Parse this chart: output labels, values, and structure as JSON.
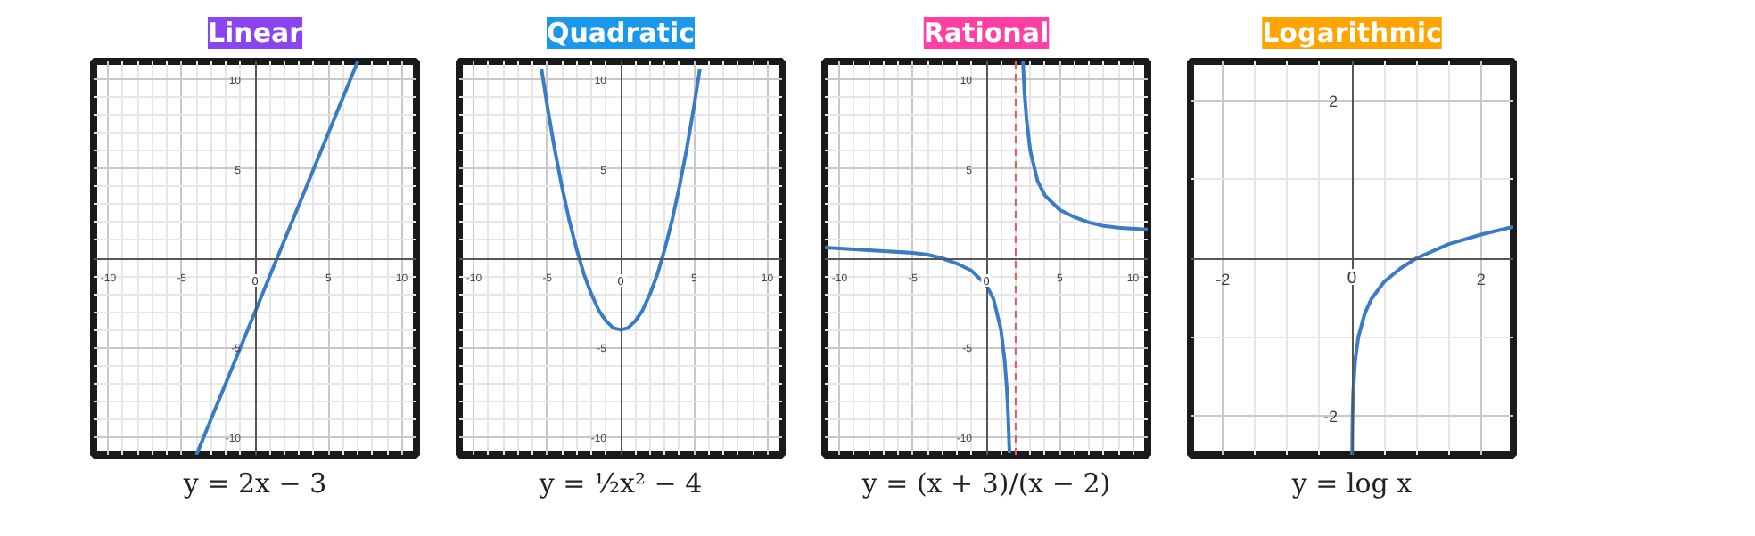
{
  "chart_data": [
    {
      "type": "line",
      "title": "Linear",
      "xlabel": "y = 2x − 3",
      "xlim": [
        -11,
        11
      ],
      "ylim": [
        -11,
        11
      ],
      "xticks": [
        -10,
        -5,
        0,
        5,
        10
      ],
      "yticks": [
        -10,
        -5,
        5,
        10
      ],
      "grid": true,
      "marker": "none",
      "line_style": "solid",
      "series": [
        {
          "color": "#3b7bc4",
          "x": [
            -4,
            7
          ],
          "values": [
            -11,
            11
          ]
        }
      ]
    },
    {
      "type": "line",
      "title": "Quadratic",
      "xlabel": "y = ½x² − 4",
      "xlim": [
        -11,
        11
      ],
      "ylim": [
        -11,
        11
      ],
      "xticks": [
        -10,
        -5,
        0,
        5,
        10
      ],
      "yticks": [
        -10,
        -5,
        5,
        10
      ],
      "grid": true,
      "marker": "none",
      "line_style": "solid",
      "series": [
        {
          "color": "#3b7bc4",
          "x": [
            -5.4,
            -5,
            -4.5,
            -4,
            -3.5,
            -3,
            -2.5,
            -2,
            -1.5,
            -1,
            -0.5,
            0,
            0.5,
            1,
            1.5,
            2,
            2.5,
            3,
            3.5,
            4,
            4.5,
            5,
            5.4
          ],
          "values": [
            10.6,
            8.5,
            6.1,
            4,
            2.1,
            0.5,
            -0.9,
            -2,
            -2.9,
            -3.5,
            -3.9,
            -4,
            -3.9,
            -3.5,
            -2.9,
            -2,
            -0.9,
            0.5,
            2.1,
            4,
            6.1,
            8.5,
            10.6
          ]
        }
      ]
    },
    {
      "type": "line",
      "title": "Rational",
      "xlabel": "y = (x + 3)/(x − 2)",
      "xlim": [
        -11,
        11
      ],
      "ylim": [
        -11,
        11
      ],
      "xticks": [
        -10,
        -5,
        0,
        5,
        10
      ],
      "yticks": [
        -10,
        -5,
        5,
        10
      ],
      "grid": true,
      "marker": "none",
      "line_style": "solid",
      "ref_lines": [
        {
          "axis": "x",
          "value": 2,
          "label": null,
          "color": "#e05a5a",
          "line_style": "dashed"
        }
      ],
      "series": [
        {
          "color": "#3b7bc4",
          "x": [
            -11,
            -9,
            -7,
            -5,
            -4,
            -3,
            -2,
            -1,
            0,
            0.5,
            1,
            1.25,
            1.4,
            1.5,
            1.58
          ],
          "values": [
            0.6,
            0.5,
            0.4,
            0.3,
            0.2,
            0,
            -0.3,
            -0.7,
            -1.5,
            -2.3,
            -4,
            -5.7,
            -7.3,
            -9,
            -10.9
          ]
        },
        {
          "color": "#3b7bc4",
          "x": [
            2.5,
            2.6,
            2.75,
            3,
            3.5,
            4,
            5,
            6,
            7,
            8,
            9,
            11
          ],
          "values": [
            11,
            9.3,
            7.7,
            6,
            4.3,
            3.5,
            2.7,
            2.3,
            2,
            1.8,
            1.7,
            1.6
          ]
        }
      ]
    },
    {
      "type": "line",
      "title": "Logarithmic",
      "xlabel": "y = log x",
      "xlim": [
        -2.5,
        2.5
      ],
      "ylim": [
        -2.5,
        2.5
      ],
      "xticks": [
        -2,
        0,
        2
      ],
      "yticks": [
        -2,
        2
      ],
      "grid": true,
      "marker": "none",
      "line_style": "solid",
      "series": [
        {
          "color": "#3b7bc4",
          "x": [
            0.0032,
            0.005,
            0.01,
            0.02,
            0.05,
            0.1,
            0.2,
            0.3,
            0.5,
            0.75,
            1,
            1.5,
            2,
            2.5
          ],
          "values": [
            -2.5,
            -2.3,
            -2,
            -1.7,
            -1.3,
            -1,
            -0.7,
            -0.52,
            -0.3,
            -0.13,
            0,
            0.18,
            0.3,
            0.4
          ]
        }
      ]
    }
  ]
}
